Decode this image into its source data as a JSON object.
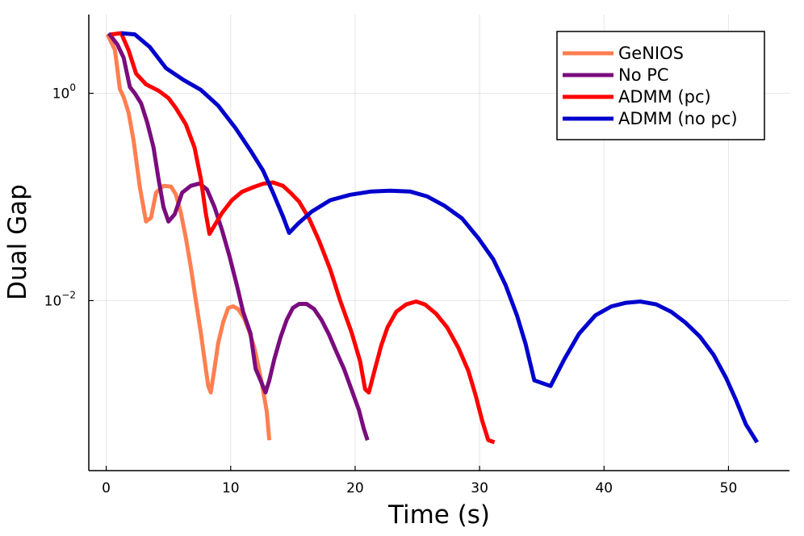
{
  "chart_data": {
    "type": "line",
    "xlabel": "Time (s)",
    "ylabel": "Dual Gap",
    "xlim": [
      -1.4,
      54.9
    ],
    "ylim_log10": [
      -3.64,
      0.76
    ],
    "y_scale": "log10",
    "grid": true,
    "legend_position": "top-right",
    "x_ticks": [
      {
        "value": 0,
        "label": "0"
      },
      {
        "value": 10,
        "label": "10"
      },
      {
        "value": 20,
        "label": "20"
      },
      {
        "value": 30,
        "label": "30"
      },
      {
        "value": 40,
        "label": "40"
      },
      {
        "value": 50,
        "label": "50"
      }
    ],
    "y_ticks": [
      {
        "value": 1,
        "base": "10",
        "exp": "0"
      },
      {
        "value": 0.01,
        "base": "10",
        "exp": "−2"
      }
    ],
    "series": [
      {
        "name": "GeNIOS",
        "color": "#ff7f50",
        "x": [
          0.1,
          0.7,
          1.1,
          1.4,
          1.8,
          2.2,
          2.7,
          3.2,
          3.6,
          4.0,
          4.6,
          5.2,
          5.6,
          6.0,
          6.4,
          6.8,
          7.2,
          7.6,
          8.0,
          8.2,
          8.4,
          8.7,
          9.0,
          9.4,
          9.8,
          10.2,
          10.6,
          11.1,
          11.5,
          11.9,
          12.2,
          12.5,
          12.9,
          13.1
        ],
        "y": [
          3.7,
          2.62,
          1.1,
          0.92,
          0.65,
          0.35,
          0.125,
          0.058,
          0.063,
          0.11,
          0.128,
          0.126,
          0.106,
          0.07,
          0.04,
          0.021,
          0.01,
          0.0049,
          0.0022,
          0.0015,
          0.0013,
          0.0022,
          0.0039,
          0.0062,
          0.0085,
          0.0088,
          0.0083,
          0.0067,
          0.005,
          0.0035,
          0.0024,
          0.0016,
          0.00085,
          0.00045
        ]
      },
      {
        "name": "No PC",
        "color": "#7b0c7e",
        "x": [
          0.2,
          0.9,
          1.4,
          1.9,
          2.3,
          2.8,
          3.3,
          3.8,
          4.2,
          4.6,
          5.0,
          5.5,
          6.1,
          6.8,
          7.5,
          8.1,
          8.7,
          9.3,
          9.9,
          10.5,
          11.0,
          11.6,
          12.0,
          12.4,
          12.8,
          13.1,
          13.5,
          14.0,
          14.5,
          15.0,
          15.5,
          16.1,
          16.7,
          17.3,
          17.9,
          18.5,
          19.1,
          19.7,
          20.3,
          20.7,
          21.0
        ],
        "y": [
          3.8,
          2.95,
          2.2,
          1.15,
          1.0,
          0.8,
          0.52,
          0.3,
          0.15,
          0.08,
          0.058,
          0.068,
          0.11,
          0.128,
          0.135,
          0.118,
          0.08,
          0.048,
          0.027,
          0.014,
          0.0078,
          0.0048,
          0.0022,
          0.0017,
          0.0013,
          0.0017,
          0.0027,
          0.0044,
          0.0065,
          0.0085,
          0.0093,
          0.0093,
          0.0083,
          0.0065,
          0.0047,
          0.0032,
          0.0022,
          0.0014,
          0.00088,
          0.00058,
          0.00045
        ]
      },
      {
        "name": "ADMM (pc)",
        "color": "#ff0000",
        "x": [
          0.4,
          1.2,
          1.8,
          2.4,
          3.2,
          4.2,
          5.0,
          5.6,
          6.4,
          7.1,
          7.6,
          8.0,
          8.3,
          8.7,
          9.3,
          10.1,
          10.9,
          11.8,
          12.6,
          13.4,
          14.2,
          14.8,
          15.5,
          16.3,
          17.1,
          18.0,
          18.8,
          19.7,
          20.4,
          20.8,
          21.1,
          21.6,
          22.1,
          22.6,
          23.3,
          24.1,
          24.9,
          25.6,
          26.5,
          27.4,
          28.3,
          29.1,
          29.7,
          30.2,
          30.7,
          31.2
        ],
        "y": [
          3.7,
          3.8,
          2.6,
          1.55,
          1.22,
          1.06,
          0.9,
          0.72,
          0.5,
          0.3,
          0.15,
          0.07,
          0.044,
          0.053,
          0.07,
          0.093,
          0.112,
          0.124,
          0.134,
          0.138,
          0.128,
          0.11,
          0.09,
          0.062,
          0.038,
          0.02,
          0.01,
          0.005,
          0.0026,
          0.0014,
          0.0013,
          0.0022,
          0.0037,
          0.0055,
          0.0078,
          0.0092,
          0.0098,
          0.0092,
          0.0075,
          0.0055,
          0.0035,
          0.0021,
          0.0012,
          0.0007,
          0.00045,
          0.00043
        ]
      },
      {
        "name": "ADMM (no pc)",
        "color": "#0000cd",
        "x": [
          1.2,
          2.3,
          3.5,
          4.8,
          6.2,
          7.6,
          9.0,
          10.4,
          11.6,
          12.6,
          13.4,
          14.2,
          14.7,
          15.4,
          16.5,
          18.0,
          19.6,
          21.3,
          22.8,
          24.4,
          25.8,
          27.2,
          28.6,
          29.9,
          31.1,
          32.1,
          33.0,
          33.7,
          34.4,
          35.7,
          36.8,
          38.0,
          39.3,
          40.6,
          41.7,
          42.9,
          44.2,
          45.4,
          46.5,
          47.7,
          48.8,
          49.8,
          50.6,
          51.4,
          52.3
        ],
        "y": [
          3.8,
          3.7,
          2.8,
          1.75,
          1.35,
          1.08,
          0.76,
          0.46,
          0.28,
          0.18,
          0.11,
          0.065,
          0.045,
          0.055,
          0.072,
          0.093,
          0.105,
          0.113,
          0.115,
          0.113,
          0.101,
          0.082,
          0.062,
          0.04,
          0.025,
          0.014,
          0.0072,
          0.0038,
          0.0017,
          0.0015,
          0.0027,
          0.0048,
          0.0072,
          0.0088,
          0.0095,
          0.0098,
          0.0092,
          0.0078,
          0.0062,
          0.0045,
          0.003,
          0.0018,
          0.0011,
          0.00064,
          0.00043
        ]
      }
    ]
  }
}
